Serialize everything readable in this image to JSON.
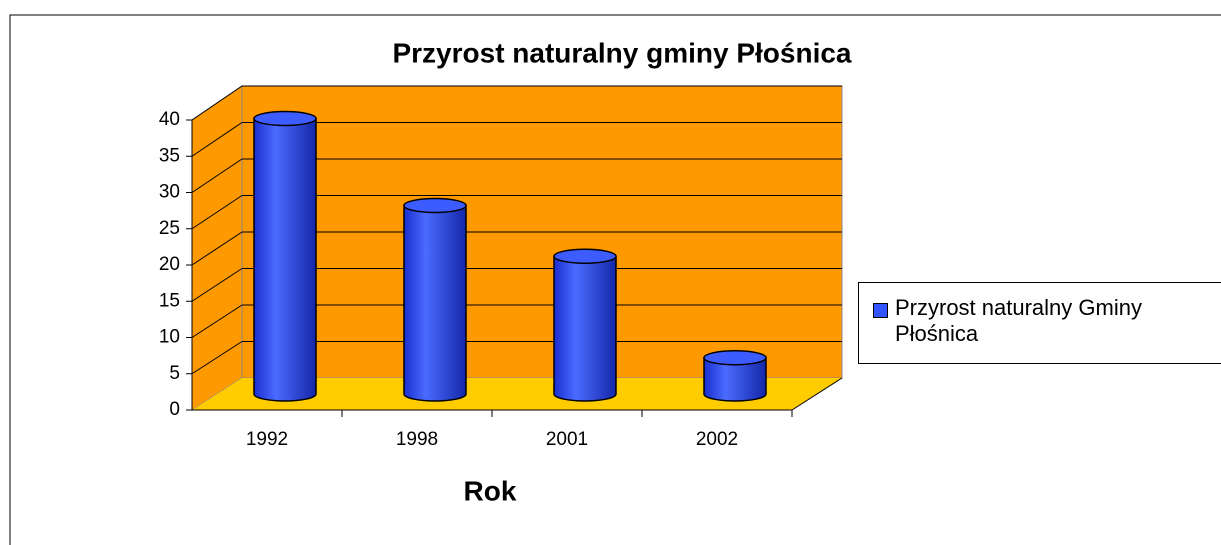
{
  "chart_data": {
    "type": "bar",
    "title": "Przyrost naturalny gminy Płośnica",
    "x_label": "Rok",
    "categories": [
      "1992",
      "1998",
      "2001",
      "2002"
    ],
    "series": [
      {
        "name": "Przyrost naturalny Gminy Płośnica",
        "color": "#3355ff",
        "values": [
          38,
          26,
          19,
          5
        ]
      }
    ],
    "ylim": [
      0,
      40
    ],
    "yticks": [
      0,
      5,
      10,
      15,
      20,
      25,
      30,
      35,
      40
    ],
    "grid": true,
    "legend": "right"
  }
}
